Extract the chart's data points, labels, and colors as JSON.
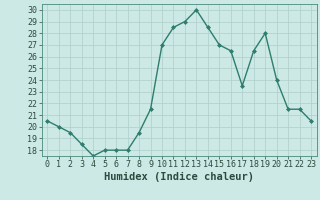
{
  "xlabel": "Humidex (Indice chaleur)",
  "x": [
    0,
    1,
    2,
    3,
    4,
    5,
    6,
    7,
    8,
    9,
    10,
    11,
    12,
    13,
    14,
    15,
    16,
    17,
    18,
    19,
    20,
    21,
    22,
    23
  ],
  "y": [
    20.5,
    20.0,
    19.5,
    18.5,
    17.5,
    18.0,
    18.0,
    18.0,
    19.5,
    21.5,
    27.0,
    28.5,
    29.0,
    30.0,
    28.5,
    27.0,
    26.5,
    23.5,
    26.5,
    28.0,
    24.0,
    21.5,
    21.5,
    20.5
  ],
  "line_color": "#2e7d6e",
  "marker": "D",
  "marker_size": 2.0,
  "linewidth": 1.0,
  "bg_color": "#cce9e5",
  "grid_color": "#aecfcb",
  "ylim": [
    17.5,
    30.5
  ],
  "yticks": [
    18,
    19,
    20,
    21,
    22,
    23,
    24,
    25,
    26,
    27,
    28,
    29,
    30
  ],
  "xticks": [
    0,
    1,
    2,
    3,
    4,
    5,
    6,
    7,
    8,
    9,
    10,
    11,
    12,
    13,
    14,
    15,
    16,
    17,
    18,
    19,
    20,
    21,
    22,
    23
  ],
  "xlim": [
    -0.5,
    23.5
  ],
  "xlabel_fontsize": 7.5,
  "tick_fontsize": 6.0,
  "label_color": "#2e4a3e",
  "spine_color": "#4a8a7e"
}
